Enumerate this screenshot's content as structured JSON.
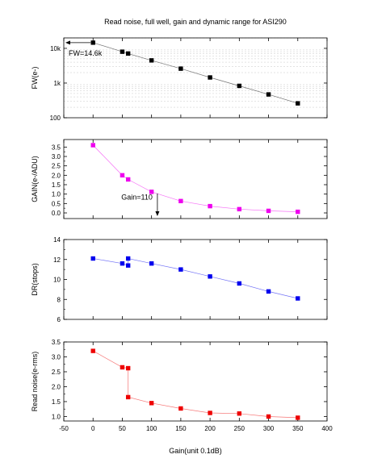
{
  "chart_data": {
    "type": "scatter",
    "title": "Read noise, full well, gain and dynamic range for ASI290",
    "xlabel": "Gain(unit 0.1dB)",
    "xlim": [
      -50,
      400
    ],
    "xticks": [
      -50,
      0,
      50,
      100,
      150,
      200,
      250,
      300,
      350,
      400
    ],
    "panels": [
      {
        "ylabel": "FW(e-)",
        "scale": "log",
        "ylim": [
          100,
          20000
        ],
        "yticks": [
          100,
          1000,
          10000
        ],
        "yticklabels": [
          "100",
          "1k",
          "10k"
        ],
        "color": "#000000",
        "series": {
          "x": [
            0,
            50,
            60,
            100,
            150,
            200,
            250,
            300,
            350
          ],
          "y": [
            14600,
            8000,
            7100,
            4500,
            2600,
            1450,
            830,
            470,
            260
          ]
        },
        "annotation": {
          "text": "FW=14.6k",
          "arrow": "left",
          "at": [
            0,
            14600
          ]
        }
      },
      {
        "ylabel": "GAIN(e-/ADU)",
        "scale": "linear",
        "ylim": [
          -0.3,
          3.9
        ],
        "yticks": [
          0.0,
          0.5,
          1.0,
          1.5,
          2.0,
          2.5,
          3.0,
          3.5
        ],
        "yticklabels": [
          "0.0",
          "0.5",
          "1.0",
          "1.5",
          "2.0",
          "2.5",
          "3.0",
          "3.5"
        ],
        "color": "#ee00ee",
        "series": {
          "x": [
            0,
            50,
            60,
            100,
            150,
            200,
            250,
            300,
            350
          ],
          "y": [
            3.6,
            2.0,
            1.78,
            1.12,
            0.63,
            0.36,
            0.2,
            0.11,
            0.06
          ]
        },
        "annotation": {
          "text": "Gain=110",
          "arrow": "down",
          "at": [
            110,
            1.12
          ]
        }
      },
      {
        "ylabel": "DR(stops)",
        "scale": "linear",
        "ylim": [
          6,
          14
        ],
        "yticks": [
          6,
          8,
          10,
          12,
          14
        ],
        "yticklabels": [
          "6",
          "8",
          "10",
          "12",
          "14"
        ],
        "color": "#0000ee",
        "series": {
          "x": [
            0,
            50,
            60,
            60,
            100,
            150,
            200,
            250,
            300,
            350
          ],
          "y": [
            12.1,
            11.6,
            11.4,
            12.1,
            11.6,
            11.0,
            10.3,
            9.6,
            8.8,
            8.1
          ]
        }
      },
      {
        "ylabel": "Read noise(e-rms)",
        "scale": "linear",
        "ylim": [
          0.85,
          3.5
        ],
        "yticks": [
          1.0,
          1.5,
          2.0,
          2.5,
          3.0,
          3.5
        ],
        "yticklabels": [
          "1.0",
          "1.5",
          "2.0",
          "2.5",
          "3.0",
          "3.5"
        ],
        "color": "#ee0000",
        "series": {
          "x": [
            0,
            50,
            60,
            60,
            100,
            150,
            200,
            250,
            300,
            350
          ],
          "y": [
            3.2,
            2.65,
            2.62,
            1.65,
            1.45,
            1.27,
            1.12,
            1.1,
            1.0,
            0.96
          ]
        }
      }
    ]
  }
}
